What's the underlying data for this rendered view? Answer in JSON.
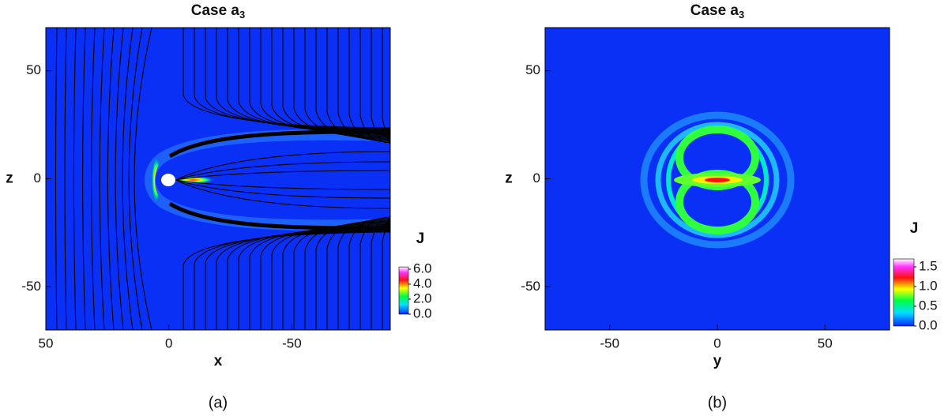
{
  "chart_data": [
    {
      "type": "heatmap",
      "title": "Case a",
      "title_subscript": "3",
      "xlabel": "x",
      "ylabel": "z",
      "xlim": [
        50,
        -90
      ],
      "ylim": [
        -70,
        70
      ],
      "xticks": [
        50,
        0,
        -50
      ],
      "yticks": [
        50,
        0,
        -50
      ],
      "colorbar": {
        "label": "J",
        "lim": [
          0,
          6.3
        ],
        "ticks": [
          {
            "value": 0,
            "label": "0.0"
          },
          {
            "value": 2,
            "label": "2.0"
          },
          {
            "value": 4,
            "label": "4.0"
          },
          {
            "value": 6,
            "label": "6.0"
          }
        ]
      },
      "panel_label": "(a)"
    },
    {
      "type": "heatmap",
      "title": "Case a",
      "title_subscript": "3",
      "xlabel": "y",
      "ylabel": "z",
      "xlim": [
        -80,
        80
      ],
      "ylim": [
        -70,
        70
      ],
      "xticks": [
        -50,
        0,
        50
      ],
      "yticks": [
        -50,
        0,
        50
      ],
      "colorbar": {
        "label": "J",
        "lim": [
          0,
          1.7
        ],
        "ticks": [
          {
            "value": 0,
            "label": "0.0"
          },
          {
            "value": 0.5,
            "label": "0.5"
          },
          {
            "value": 1,
            "label": "1.0"
          },
          {
            "value": 1.5,
            "label": "1.5"
          }
        ]
      },
      "panel_label": "(b)"
    }
  ]
}
